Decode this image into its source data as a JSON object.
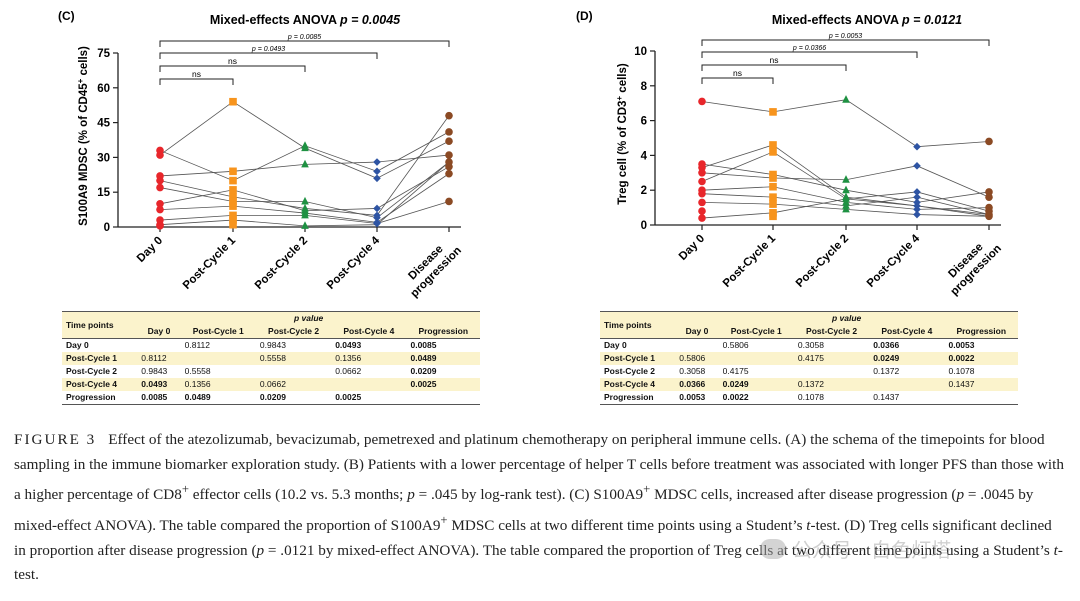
{
  "panels": [
    {
      "label": "(C)",
      "title": "Mixed-effects ANOVA",
      "p_label": "p = 0.0045",
      "ylabel": "S100A9 MDSC (% of CD45+ cells)",
      "ylabel_main": "S100A9 MDSC (% of CD45",
      "ylabel_sup": "+",
      "ylabel_end": " cells)",
      "yticks": [
        "0",
        "15",
        "30",
        "45",
        "60",
        "75"
      ],
      "categories": [
        "Day 0",
        "Post-Cycle 1",
        "Post-Cycle 2",
        "Post-Cycle 4",
        "Disease progression"
      ],
      "brackets": [
        {
          "label": "p = 0.0085",
          "to": 4
        },
        {
          "label": "p = 0.0493",
          "to": 3
        },
        {
          "label": "ns",
          "to": 2
        },
        {
          "label": "ns",
          "to": 1
        }
      ],
      "table": {
        "header_left": "Time points",
        "header_group": "p value",
        "columns": [
          "Day 0",
          "Post-Cycle 1",
          "Post-Cycle 2",
          "Post-Cycle 4",
          "Progression"
        ],
        "rows": [
          {
            "name": "Day 0",
            "cells": [
              "",
              "0.8112",
              "0.9843",
              "0.0493",
              "0.0085"
            ],
            "bold": [
              false,
              false,
              false,
              true,
              true
            ]
          },
          {
            "name": "Post-Cycle 1",
            "cells": [
              "0.8112",
              "",
              "0.5558",
              "0.1356",
              "0.0489"
            ],
            "bold": [
              false,
              false,
              false,
              false,
              true
            ]
          },
          {
            "name": "Post-Cycle 2",
            "cells": [
              "0.9843",
              "0.5558",
              "",
              "0.0662",
              "0.0209"
            ],
            "bold": [
              false,
              false,
              false,
              false,
              true
            ]
          },
          {
            "name": "Post-Cycle 4",
            "cells": [
              "0.0493",
              "0.1356",
              "0.0662",
              "",
              "0.0025"
            ],
            "bold": [
              true,
              false,
              false,
              false,
              true
            ]
          },
          {
            "name": "Progression",
            "cells": [
              "0.0085",
              "0.0489",
              "0.0209",
              "0.0025",
              ""
            ],
            "bold": [
              true,
              true,
              true,
              true,
              false
            ]
          }
        ]
      }
    },
    {
      "label": "(D)",
      "title": "Mixed-effects ANOVA",
      "p_label": "p = 0.0121",
      "ylabel": "Treg cell (% of CD3+ cells)",
      "ylabel_main": "Treg cell (% of CD3",
      "ylabel_sup": "+",
      "ylabel_end": " cells)",
      "yticks": [
        "0",
        "2",
        "4",
        "6",
        "8",
        "10"
      ],
      "categories": [
        "Day 0",
        "Post-Cycle 1",
        "Post-Cycle 2",
        "Post-Cycle 4",
        "Disease progression"
      ],
      "brackets": [
        {
          "label": "p = 0.0053",
          "to": 4
        },
        {
          "label": "p = 0.0366",
          "to": 3
        },
        {
          "label": "ns",
          "to": 2
        },
        {
          "label": "ns",
          "to": 1
        }
      ],
      "table": {
        "header_left": "Time points",
        "header_group": "p value",
        "columns": [
          "Day 0",
          "Post-Cycle 1",
          "Post-Cycle 2",
          "Post-Cycle 4",
          "Progression"
        ],
        "rows": [
          {
            "name": "Day 0",
            "cells": [
              "",
              "0.5806",
              "0.3058",
              "0.0366",
              "0.0053"
            ],
            "bold": [
              false,
              false,
              false,
              true,
              true
            ]
          },
          {
            "name": "Post-Cycle 1",
            "cells": [
              "0.5806",
              "",
              "0.4175",
              "0.0249",
              "0.0022"
            ],
            "bold": [
              false,
              false,
              false,
              true,
              true
            ]
          },
          {
            "name": "Post-Cycle 2",
            "cells": [
              "0.3058",
              "0.4175",
              "",
              "0.1372",
              "0.1078"
            ],
            "bold": [
              false,
              false,
              false,
              false,
              false
            ]
          },
          {
            "name": "Post-Cycle 4",
            "cells": [
              "0.0366",
              "0.0249",
              "0.1372",
              "",
              "0.1437"
            ],
            "bold": [
              true,
              true,
              false,
              false,
              false
            ]
          },
          {
            "name": "Progression",
            "cells": [
              "0.0053",
              "0.0022",
              "0.1078",
              "0.1437",
              ""
            ],
            "bold": [
              true,
              true,
              false,
              false,
              false
            ]
          }
        ]
      }
    }
  ],
  "chart_data": [
    {
      "type": "scatter",
      "title": "Mixed-effects ANOVA p = 0.0045",
      "ylabel": "S100A9 MDSC (% of CD45+ cells)",
      "ylim": [
        0,
        75
      ],
      "categories": [
        "Day 0",
        "Post-Cycle 1",
        "Post-Cycle 2",
        "Post-Cycle 4",
        "Disease progression"
      ],
      "marker_colors": [
        "#e8262b",
        "#f7941d",
        "#1e9142",
        "#2e54a3",
        "#8b4a24"
      ],
      "points": [
        [
          33,
          31,
          22,
          20,
          17,
          10,
          7.5,
          3,
          1,
          0.5
        ],
        [
          54,
          24,
          20,
          16,
          13,
          11,
          9,
          5,
          3,
          1
        ],
        [
          35,
          34,
          27,
          11,
          8,
          7,
          6,
          5,
          0.5
        ],
        [
          28,
          24,
          21,
          8,
          5,
          4,
          2,
          1.5
        ],
        [
          48,
          41,
          37,
          31,
          28,
          26,
          23,
          11
        ]
      ],
      "lines": [
        [
          33,
          20,
          35,
          24,
          41
        ],
        [
          31,
          54,
          34,
          21,
          37
        ],
        [
          22,
          24,
          27,
          28,
          31
        ],
        [
          20,
          13,
          8,
          5,
          48
        ],
        [
          17,
          11,
          11,
          4,
          28
        ],
        [
          10,
          16,
          7,
          8,
          26
        ],
        [
          7.5,
          9,
          6,
          2,
          23
        ],
        [
          3,
          5,
          5,
          1.5,
          11
        ],
        [
          1,
          3,
          0.5,
          1,
          28
        ]
      ]
    },
    {
      "type": "scatter",
      "title": "Mixed-effects ANOVA p = 0.0121",
      "ylabel": "Treg cell (% of CD3+ cells)",
      "ylim": [
        0,
        10
      ],
      "categories": [
        "Day 0",
        "Post-Cycle 1",
        "Post-Cycle 2",
        "Post-Cycle 4",
        "Disease progression"
      ],
      "marker_colors": [
        "#e8262b",
        "#f7941d",
        "#1e9142",
        "#2e54a3",
        "#8b4a24"
      ],
      "points": [
        [
          7.1,
          3.5,
          3.3,
          3.0,
          2.5,
          2.0,
          1.8,
          1.3,
          0.8,
          0.4
        ],
        [
          6.5,
          4.6,
          4.2,
          2.9,
          2.7,
          2.2,
          1.6,
          1.2,
          0.7,
          0.5
        ],
        [
          7.2,
          2.6,
          2.0,
          1.6,
          1.5,
          1.3,
          1.1,
          0.9
        ],
        [
          4.5,
          3.4,
          1.9,
          1.6,
          1.3,
          1.1,
          0.9,
          0.6
        ],
        [
          4.8,
          1.9,
          1.6,
          1.0,
          0.8,
          0.6,
          0.5
        ]
      ],
      "lines": [
        [
          7.1,
          6.5,
          7.2,
          4.5,
          4.8
        ],
        [
          3.5,
          2.9,
          2.0,
          1.3,
          1.9
        ],
        [
          3.3,
          4.6,
          1.6,
          1.1,
          0.6
        ],
        [
          3.0,
          2.7,
          2.6,
          3.4,
          1.6
        ],
        [
          2.5,
          4.2,
          1.5,
          1.9,
          0.8
        ],
        [
          2.0,
          2.2,
          1.3,
          0.9,
          1.0
        ],
        [
          1.8,
          1.6,
          1.1,
          1.6,
          0.6
        ],
        [
          1.3,
          1.2,
          0.9,
          0.6,
          0.5
        ],
        [
          0.4,
          0.7,
          1.5,
          1.1,
          0.5
        ]
      ]
    }
  ],
  "caption": {
    "figure_label": "FIGURE 3",
    "html": "Effect of the atezolizumab, bevacizumab, pemetrexed and platinum chemotherapy on peripheral immune cells. (A) the schema of the timepoints for blood sampling in the immune biomarker exploration study. (B) Patients with a lower percentage of helper T cells before treatment was associated with longer PFS than those with a higher percentage of CD8<sup>+</sup> effector cells (10.2 vs. 5.3 months; <i>p</i> = .045 by log-rank test). (C) S100A9<sup>+</sup> MDSC cells, increased after disease progression (<i>p</i> = .0045 by mixed-effect ANOVA). The table compared the proportion of S100A9<sup>+</sup> MDSC cells at two different time points using a Student’s <i>t</i>-test. (D) Treg cells significant declined in proportion after disease progression (<i>p</i> = .0121 by mixed-effect ANOVA). The table compared the proportion of Treg cells at two different time points using a Student’s <i>t</i>-test."
  },
  "watermark": "公众号 · 白色灯塔"
}
